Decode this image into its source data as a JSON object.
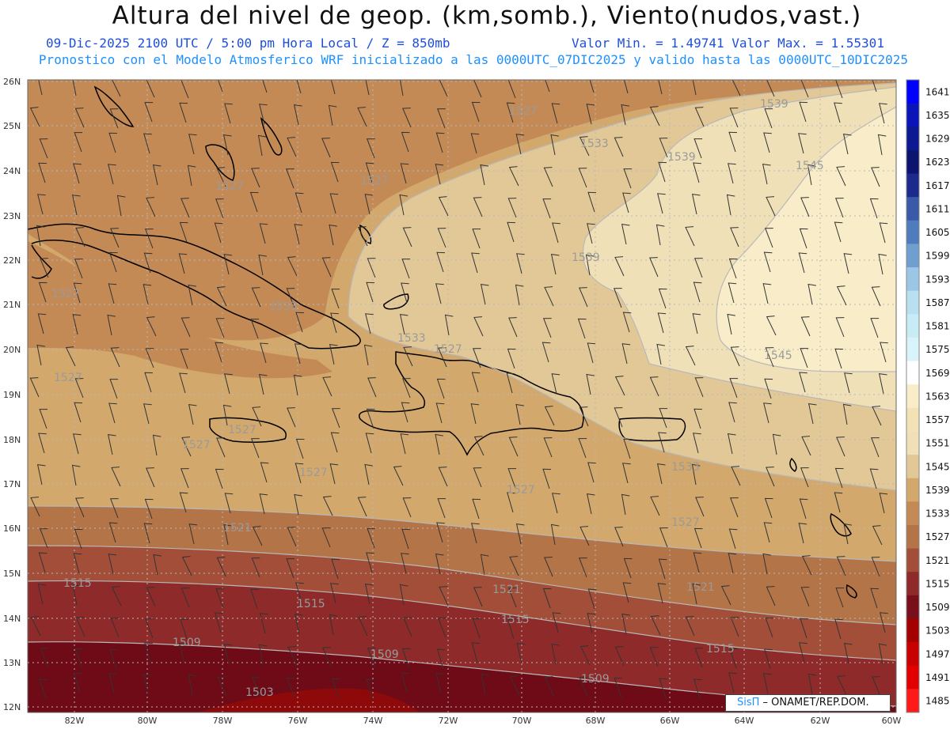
{
  "header": {
    "title": "Altura del nivel de geop. (km,somb.), Viento(nudos,vast.)",
    "line1": "09-Dic-2025  2100 UTC / 5:00 pm Hora Local / Z = 850mb",
    "line1_stats": "Valor Min. = 1.49741  Valor Max. = 1.55301",
    "line2": "Pronostico con el Modelo Atmosferico WRF inicializado a las 0000UTC_07DIC2025 y valido hasta las  0000UTC_10DIC2025",
    "color_title": "#111111",
    "color_subtitle": "#1e4fd8",
    "color_line2": "#1e90ff"
  },
  "map": {
    "lon_range": [
      -83,
      -60
    ],
    "lat_range": [
      11.85,
      26.1
    ],
    "lon_ticks": [
      "82W",
      "80W",
      "78W",
      "76W",
      "74W",
      "72W",
      "70W",
      "68W",
      "66W",
      "64W",
      "62W",
      "60W"
    ],
    "lat_ticks": [
      "12N",
      "13N",
      "14N",
      "15N",
      "16N",
      "17N",
      "18N",
      "19N",
      "20N",
      "21N",
      "22N",
      "23N",
      "24N",
      "25N",
      "26N"
    ],
    "contour_labels": [
      "1539",
      "1527",
      "1533",
      "1539",
      "1545",
      "1527",
      "1527",
      "1533",
      "1539",
      "1527",
      "1527",
      "1533",
      "1527",
      "1545",
      "1527",
      "1527",
      "1527",
      "1527",
      "1533",
      "1521",
      "1527",
      "1515",
      "1521",
      "1515",
      "1521",
      "1509",
      "1515",
      "1509",
      "1515",
      "1509",
      "1503"
    ],
    "grid": "dotted"
  },
  "colorbar": {
    "levels": [
      "1641",
      "1635",
      "1629",
      "1623",
      "1617",
      "1611",
      "1605",
      "1599",
      "1593",
      "1587",
      "1581",
      "1575",
      "1569",
      "1563",
      "1557",
      "1551",
      "1545",
      "1539",
      "1533",
      "1527",
      "1521",
      "1515",
      "1509",
      "1503",
      "1497",
      "1491",
      "1485"
    ],
    "colors": [
      "#0000ff",
      "#0a14b8",
      "#0c1990",
      "#0c1470",
      "#1c2a8c",
      "#3a5aa8",
      "#4f7cbc",
      "#6f9fce",
      "#9cc6e6",
      "#b8e0f0",
      "#c8ecf6",
      "#d8f4fa",
      "#ffffff",
      "#f8edc8",
      "#f2e2b5",
      "#efe0b8",
      "#e2c896",
      "#d2a86c",
      "#c48a56",
      "#b37448",
      "#a24e38",
      "#8e2a2a",
      "#78101c",
      "#a50000",
      "#c80000",
      "#e00000",
      "#ff1a1a"
    ]
  },
  "credit": {
    "brand": "SisΠ",
    "org": " – ONAMET/REP.DOM."
  }
}
